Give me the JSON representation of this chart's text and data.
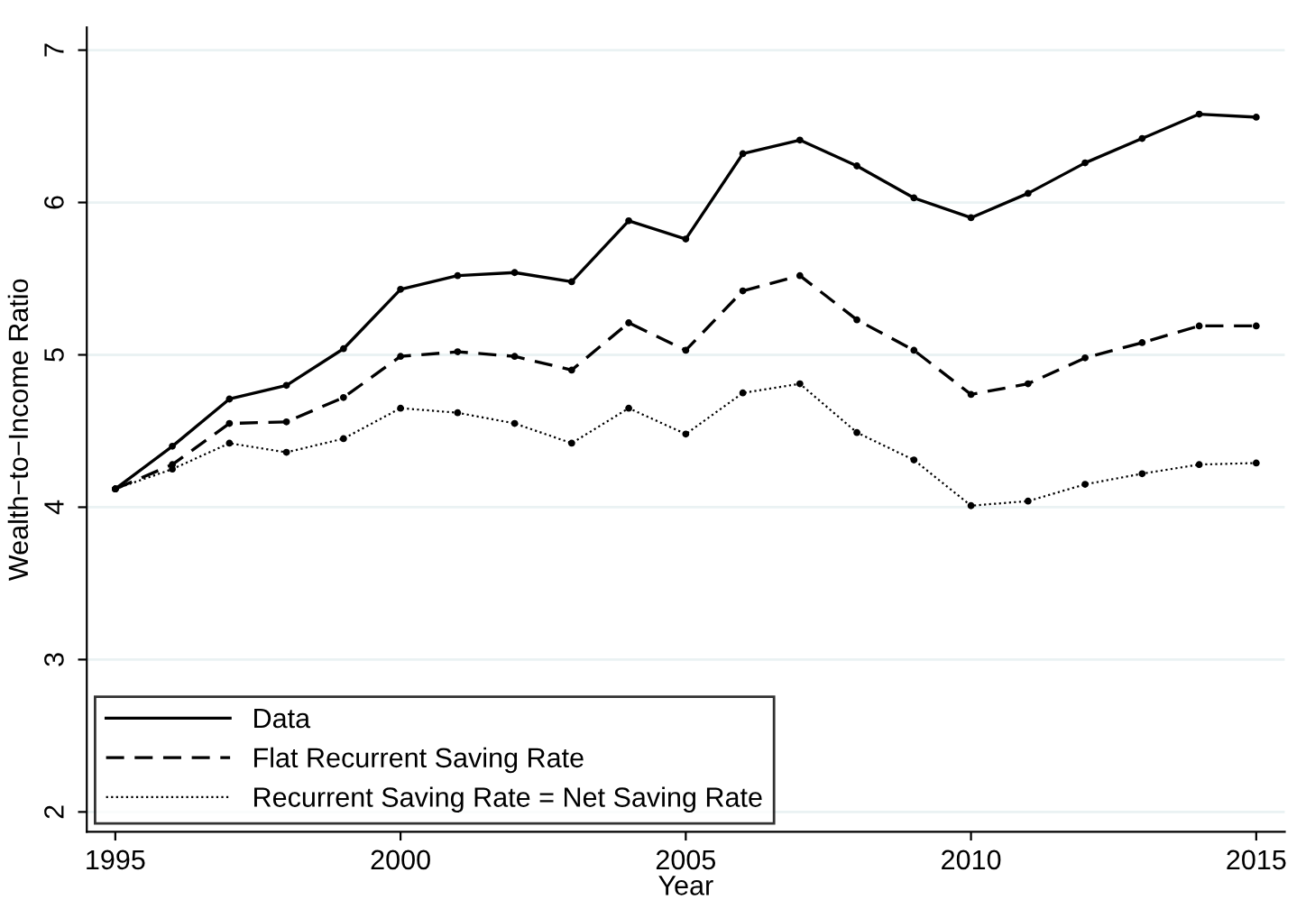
{
  "chart_data": {
    "type": "line",
    "xlabel": "Year",
    "ylabel": "Wealth−to−Income Ratio",
    "x": [
      1995,
      1996,
      1997,
      1998,
      1999,
      2000,
      2001,
      2002,
      2003,
      2004,
      2005,
      2006,
      2007,
      2008,
      2009,
      2010,
      2011,
      2012,
      2013,
      2014,
      2015
    ],
    "series": [
      {
        "name": "Data",
        "color": "#000000",
        "line_style": "solid",
        "values": [
          4.12,
          4.4,
          4.71,
          4.8,
          5.04,
          5.43,
          5.52,
          5.54,
          5.48,
          5.88,
          5.76,
          6.32,
          6.41,
          6.24,
          6.03,
          5.9,
          6.06,
          6.26,
          6.42,
          6.58,
          6.56
        ]
      },
      {
        "name": "Flat Recurrent Saving Rate",
        "color": "#000000",
        "line_style": "dashed",
        "values": [
          4.12,
          4.28,
          4.55,
          4.56,
          4.72,
          4.99,
          5.02,
          4.99,
          4.9,
          5.21,
          5.03,
          5.42,
          5.52,
          5.23,
          5.03,
          4.74,
          4.81,
          4.98,
          5.08,
          5.19,
          5.19
        ]
      },
      {
        "name": "Recurrent Saving Rate = Net Saving Rate",
        "color": "#000000",
        "line_style": "dotted",
        "values": [
          4.12,
          4.25,
          4.42,
          4.36,
          4.45,
          4.65,
          4.62,
          4.55,
          4.42,
          4.65,
          4.48,
          4.75,
          4.81,
          4.49,
          4.31,
          4.01,
          4.04,
          4.15,
          4.22,
          4.28,
          4.29
        ]
      }
    ],
    "xlim": [
      1994.5,
      2015.5
    ],
    "xticks": [
      1995,
      2000,
      2005,
      2010,
      2015
    ],
    "ylim": [
      1.87,
      7.15
    ],
    "yticks": [
      2,
      3,
      4,
      5,
      6,
      7
    ],
    "grid": "y",
    "legend": "bottom left",
    "marker": "circle"
  }
}
